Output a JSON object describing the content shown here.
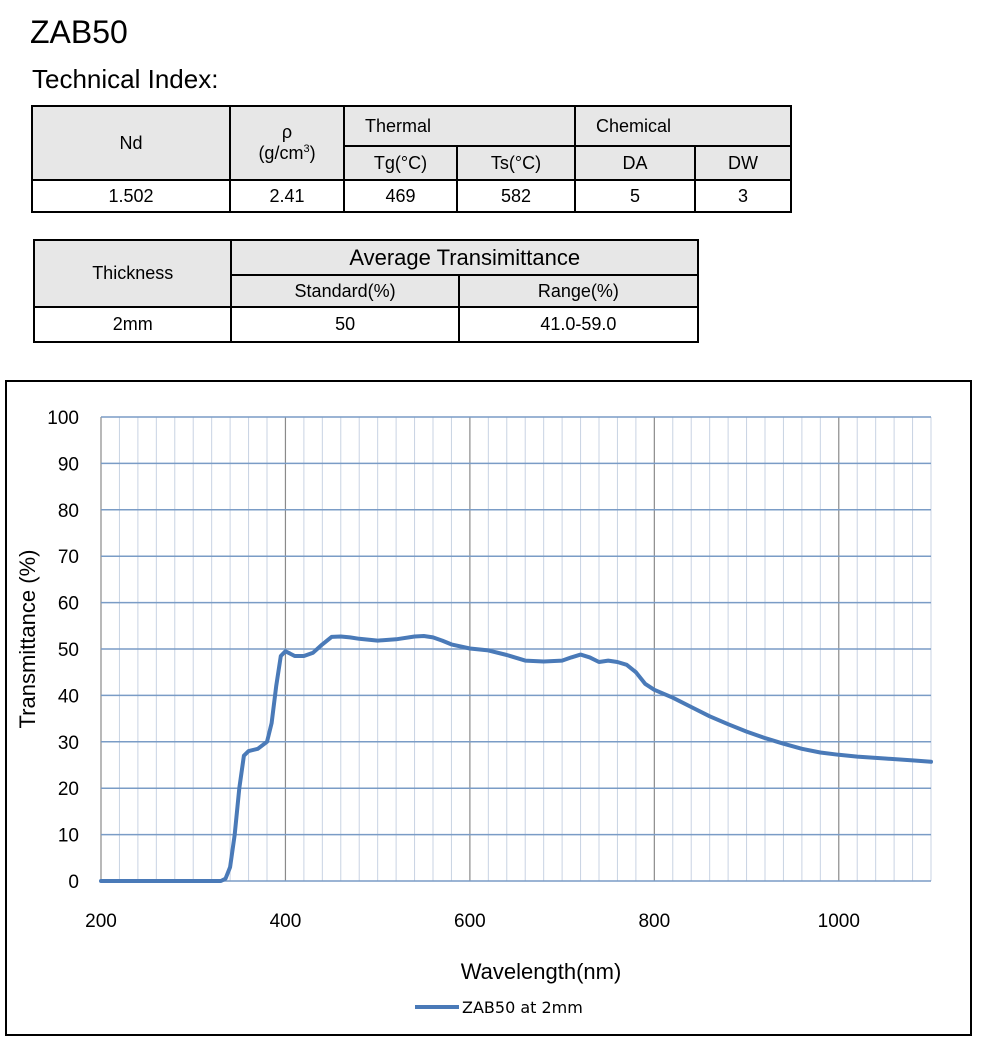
{
  "header": {
    "title": "ZAB50",
    "subtitle": "Technical Index:"
  },
  "table1": {
    "nd_label": "Nd",
    "rho_label": "ρ",
    "rho_unit_prefix": "(g/cm",
    "rho_unit_sup": "3",
    "rho_unit_suffix": ")",
    "thermal_label": "Thermal",
    "chemical_label": "Chemical",
    "tg_label": "Tg(°C)",
    "ts_label": "Ts(°C)",
    "da_label": "DA",
    "dw_label": "DW",
    "values": {
      "nd": "1.502",
      "rho": "2.41",
      "tg": "469",
      "ts": "582",
      "da": "5",
      "dw": "3"
    }
  },
  "table2": {
    "thickness_label": "Thickness",
    "avg_label": "Average Transimittance",
    "standard_label": "Standard(%)",
    "range_label": "Range(%)",
    "values": {
      "thickness": "2mm",
      "standard": "50",
      "range": "41.0-59.0"
    }
  },
  "chart_data": {
    "type": "line",
    "title": "",
    "xlabel": "Wavelength(nm)",
    "ylabel": "Transmittance (%)",
    "xlim": [
      200,
      1100
    ],
    "ylim": [
      0,
      100
    ],
    "x_ticks": [
      200,
      400,
      600,
      800,
      1000
    ],
    "y_ticks": [
      0,
      10,
      20,
      30,
      40,
      50,
      60,
      70,
      80,
      90,
      100
    ],
    "grid": true,
    "legend_position": "bottom-left",
    "colors": {
      "line": "#4a7ab8",
      "grid": "#7a9cc6",
      "grid_major": "#8a8a8a"
    },
    "series": [
      {
        "name": "ZAB50 at 2mm",
        "x": [
          200,
          330,
          335,
          340,
          345,
          350,
          355,
          360,
          370,
          380,
          385,
          390,
          395,
          400,
          405,
          410,
          420,
          430,
          440,
          450,
          460,
          470,
          480,
          500,
          520,
          540,
          550,
          560,
          570,
          580,
          600,
          620,
          640,
          660,
          680,
          700,
          710,
          720,
          730,
          740,
          750,
          760,
          770,
          780,
          790,
          800,
          820,
          840,
          860,
          880,
          900,
          920,
          940,
          960,
          980,
          1000,
          1020,
          1050,
          1080,
          1100
        ],
        "y": [
          0,
          0,
          0.5,
          3,
          10,
          20,
          27,
          28,
          28.5,
          30,
          34,
          42,
          48.5,
          49.5,
          49,
          48.5,
          48.5,
          49.2,
          51,
          52.6,
          52.7,
          52.5,
          52.2,
          51.8,
          52.1,
          52.7,
          52.8,
          52.5,
          51.8,
          51,
          50.1,
          49.7,
          48.7,
          47.5,
          47.3,
          47.5,
          48.2,
          48.8,
          48.2,
          47.2,
          47.5,
          47.2,
          46.6,
          45,
          42.5,
          41.2,
          39.5,
          37.5,
          35.5,
          33.8,
          32.2,
          30.8,
          29.6,
          28.5,
          27.7,
          27.2,
          26.8,
          26.4,
          26,
          25.7
        ]
      }
    ]
  }
}
